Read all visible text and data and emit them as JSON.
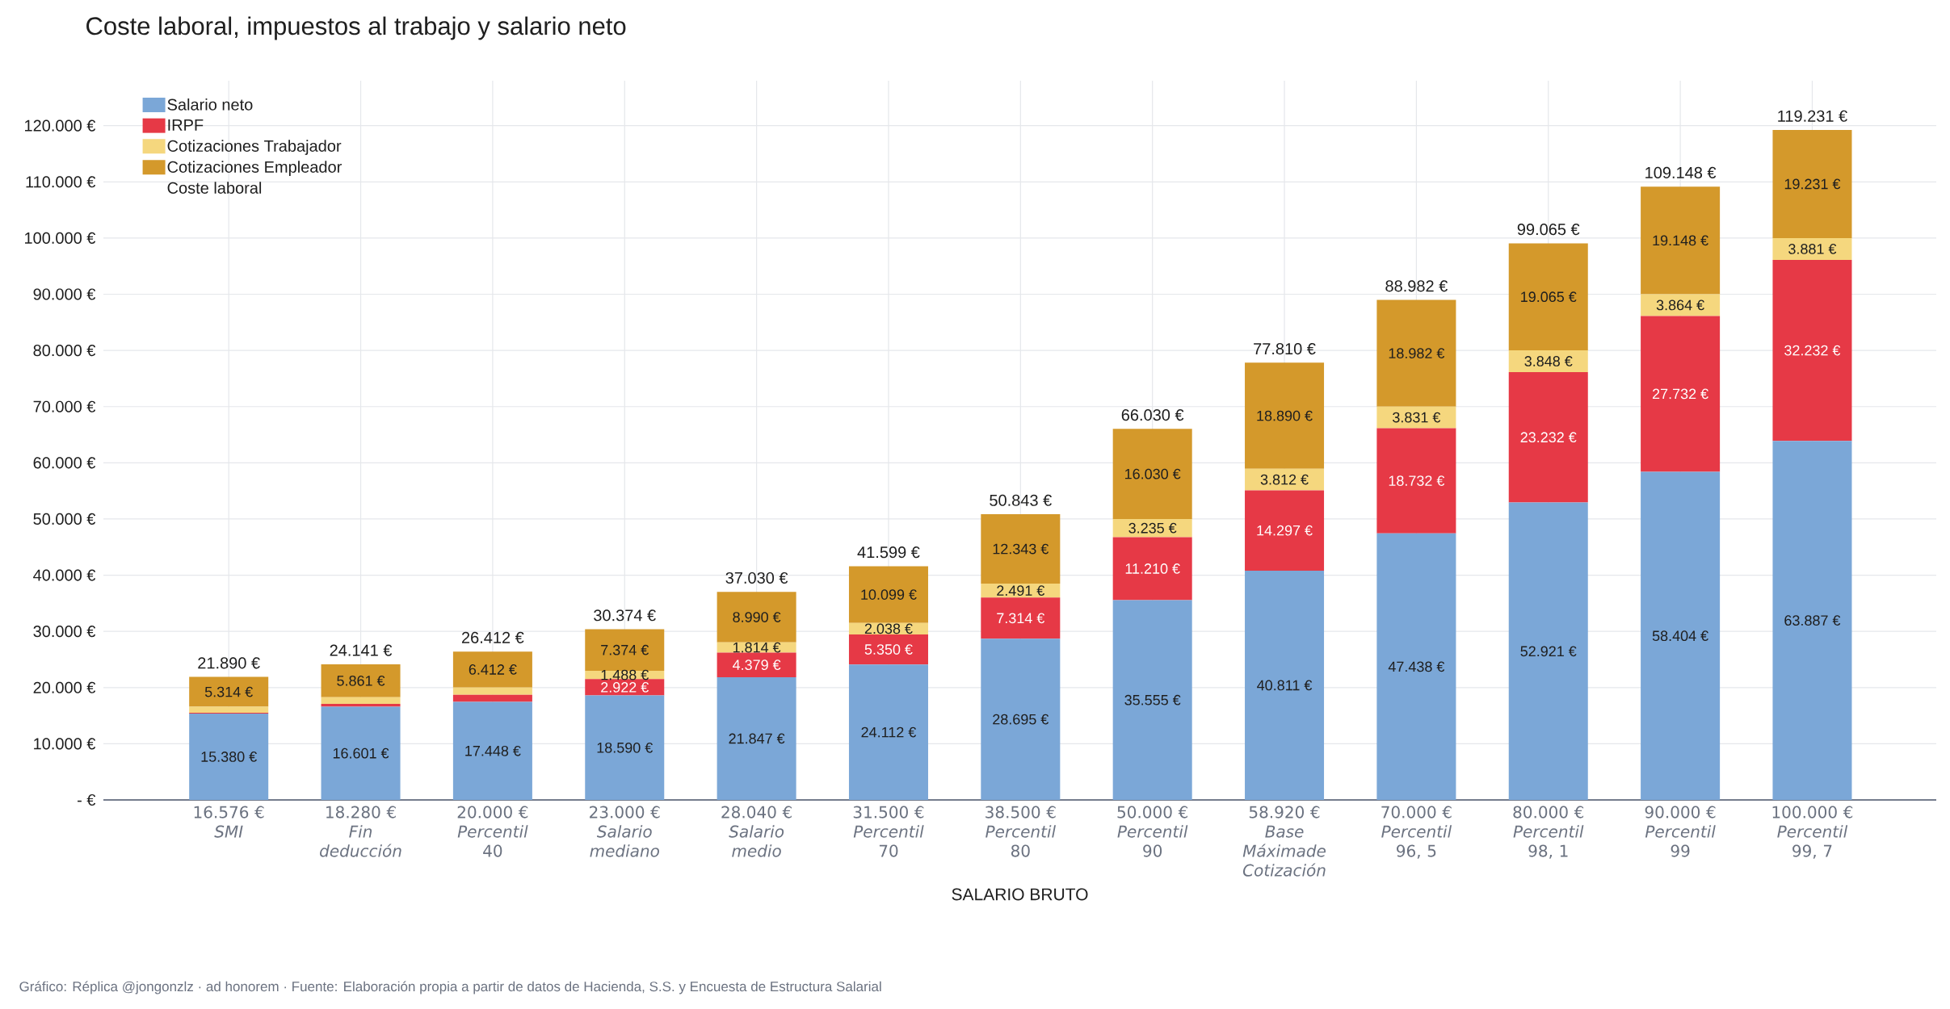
{
  "chart_data": {
    "type": "bar",
    "title": "Coste laboral, impuestos al trabajo y salario neto",
    "xlabel": "SALARIO BRUTO",
    "categories": [
      "16.576 € *SMI*",
      "18.280 € *Fin deducción*",
      "20.000 € *Percentil* 40",
      "23.000 € *Salario mediano*",
      "28.040 € *Salario medio*",
      "31.500 € *Percentil* 70",
      "38.500 € *Percentil* 80",
      "50.000 € *Percentil* 90",
      "58.920 € *Base Máximade Cotización*",
      "70.000 € *Percentil* 96, 5",
      "80.000 € *Percentil* 98, 1",
      "90.000 € *Percentil* 99",
      "100.000 € *Percentil* 99, 7"
    ],
    "stacked": true,
    "series": [
      {
        "name": "Salario neto",
        "color": "#7ba7d7",
        "values": [
          15380,
          16601,
          17448,
          18590,
          21847,
          24112,
          28695,
          35555,
          40811,
          47438,
          52921,
          58404,
          63887
        ],
        "value_labels": [
          "15.380 €",
          "16.601 €",
          "17.448 €",
          "18.590 €",
          "21.847 €",
          "24.112 €",
          "28.695 €",
          "35.555 €",
          "40.811 €",
          "47.438 €",
          "52.921 €",
          "58.404 €",
          "63.887 €"
        ]
      },
      {
        "name": "IRPF",
        "color": "#e63946",
        "values": [
          124,
          496,
          1258,
          2922,
          4379,
          5350,
          7314,
          11210,
          14297,
          18732,
          23232,
          27732,
          32232
        ],
        "value_labels": [
          null,
          null,
          null,
          "2.922 €",
          "4.379 €",
          "5.350 €",
          "7.314 €",
          "11.210 €",
          "14.297 €",
          "18.732 €",
          "23.232 €",
          "27.732 €",
          "32.232 €"
        ]
      },
      {
        "name": "Cotizaciones Trabajador",
        "color": "#f5d77e",
        "values": [
          1072,
          1183,
          1294,
          1488,
          1814,
          2038,
          2491,
          3235,
          3812,
          3831,
          3848,
          3864,
          3881
        ],
        "value_labels": [
          null,
          null,
          null,
          "1.488 €",
          "1.814 €",
          "2.038 €",
          "2.491 €",
          "3.235 €",
          "3.812 €",
          "3.831 €",
          "3.848 €",
          "3.864 €",
          "3.881 €"
        ]
      },
      {
        "name": "Cotizaciones Empleador",
        "color": "#d4992b",
        "values": [
          5314,
          5861,
          6412,
          7374,
          8990,
          10099,
          12343,
          16030,
          18890,
          18982,
          19065,
          19148,
          19231
        ],
        "value_labels": [
          "5.314 €",
          "5.861 €",
          "6.412 €",
          "7.374 €",
          "8.990 €",
          "10.099 €",
          "12.343 €",
          "16.030 €",
          "18.890 €",
          "18.982 €",
          "19.065 €",
          "19.148 €",
          "19.231 €"
        ]
      }
    ],
    "totals": [
      "21.890 €",
      "24.141 €",
      "26.412 €",
      "30.374 €",
      "37.030 €",
      "41.599 €",
      "50.843 €",
      "66.030 €",
      "77.810 €",
      "88.982 €",
      "99.065 €",
      "109.148 €",
      "119.231 €"
    ],
    "ylim": [
      0,
      128000
    ],
    "yticks": [
      {
        "value": 0,
        "label": "-  €"
      },
      {
        "value": 10000,
        "label": "10.000 €"
      },
      {
        "value": 20000,
        "label": "20.000 €"
      },
      {
        "value": 30000,
        "label": "30.000 €"
      },
      {
        "value": 40000,
        "label": "40.000 €"
      },
      {
        "value": 50000,
        "label": "50.000 €"
      },
      {
        "value": 60000,
        "label": "60.000 €"
      },
      {
        "value": 70000,
        "label": "70.000 €"
      },
      {
        "value": 80000,
        "label": "80.000 €"
      },
      {
        "value": 90000,
        "label": "90.000 €"
      },
      {
        "value": 100000,
        "label": "100.000 €"
      },
      {
        "value": 110000,
        "label": "110.000 €"
      },
      {
        "value": 120000,
        "label": "120.000 €"
      }
    ],
    "grid": true,
    "legend": "top left",
    "annotations": [
      "Coste laboral",
      "Gráfico: Réplica @jongonzlz · ad honorem  ·  Fuente: Elaboración propia a partir de datos de Hacienda, S.S. y Encuesta de Estructura Salarial"
    ]
  }
}
